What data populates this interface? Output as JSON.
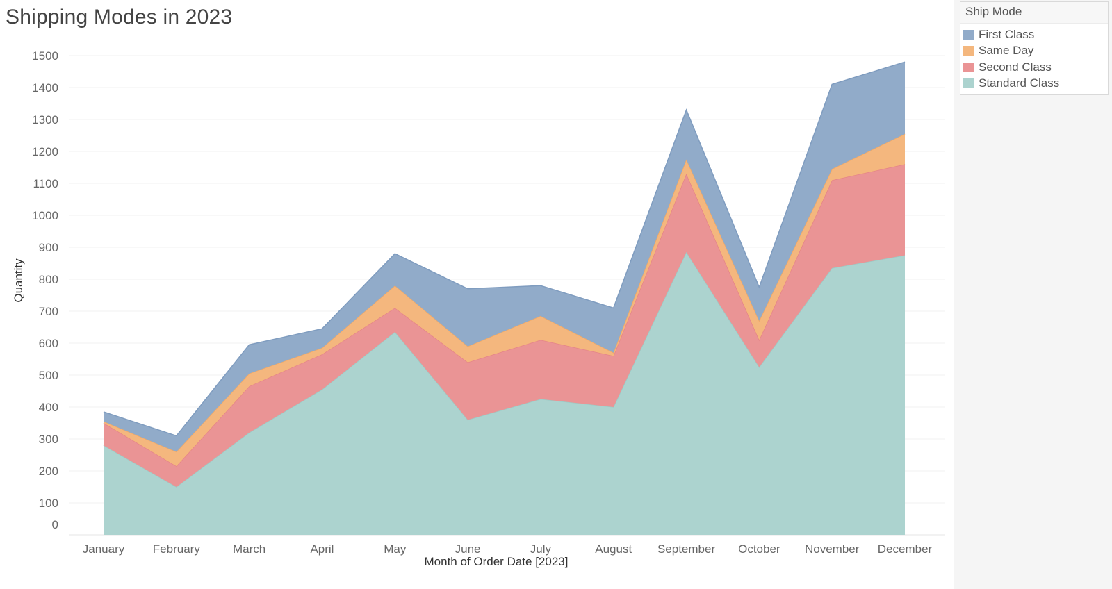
{
  "title": "Shipping Modes in 2023",
  "legend": {
    "title": "Ship Mode",
    "items": [
      {
        "label": "First Class",
        "color": "#91abc9"
      },
      {
        "label": "Same Day",
        "color": "#f4b77e"
      },
      {
        "label": "Second Class",
        "color": "#ea9495"
      },
      {
        "label": "Standard Class",
        "color": "#acd3cf"
      }
    ]
  },
  "chart_data": {
    "type": "area",
    "stacked": true,
    "title": "Shipping Modes in 2023",
    "xlabel": "Month of Order Date [2023]",
    "ylabel": "Quantity",
    "categories": [
      "January",
      "February",
      "March",
      "April",
      "May",
      "June",
      "July",
      "August",
      "September",
      "October",
      "November",
      "December"
    ],
    "ylim": [
      0,
      1500
    ],
    "yticks": [
      0,
      100,
      200,
      300,
      400,
      500,
      600,
      700,
      800,
      900,
      1000,
      1100,
      1200,
      1300,
      1400,
      1500
    ],
    "grid": true,
    "legend_position": "right",
    "series": [
      {
        "name": "Standard Class",
        "color": "#acd3cf",
        "line": "#9ccac5",
        "values": [
          280,
          150,
          320,
          455,
          635,
          360,
          425,
          400,
          885,
          525,
          835,
          875
        ]
      },
      {
        "name": "Second Class",
        "color": "#ea9495",
        "line": "#e58487",
        "values": [
          70,
          65,
          145,
          110,
          75,
          180,
          185,
          160,
          245,
          85,
          275,
          285
        ]
      },
      {
        "name": "Same Day",
        "color": "#f4b77e",
        "line": "#efa866",
        "values": [
          5,
          45,
          40,
          20,
          70,
          50,
          75,
          10,
          45,
          60,
          35,
          95
        ]
      },
      {
        "name": "First Class",
        "color": "#91abc9",
        "line": "#7f9cbf",
        "values": [
          30,
          50,
          90,
          60,
          100,
          180,
          95,
          140,
          155,
          105,
          265,
          225
        ]
      }
    ]
  }
}
